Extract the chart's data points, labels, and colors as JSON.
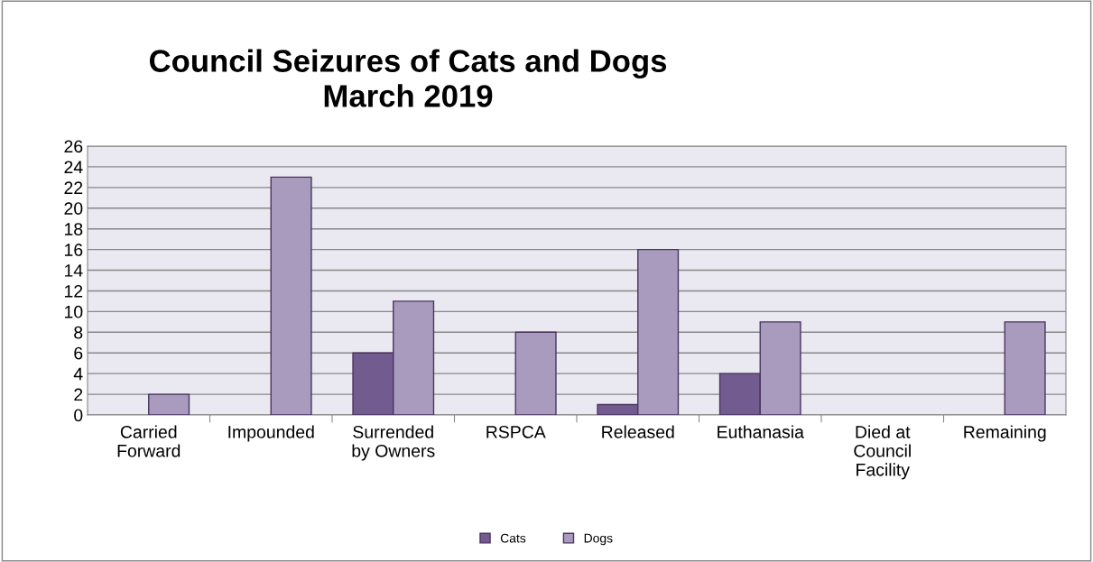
{
  "chart_data": {
    "type": "bar",
    "title": "Council Seizures of Cats and Dogs\nMarch 2019",
    "categories": [
      "Carried\nForward",
      "Impounded",
      "Surrended\nby Owners",
      "RSPCA",
      "Released",
      "Euthanasia",
      "Died at\nCouncil\nFacility",
      "Remaining"
    ],
    "series": [
      {
        "name": "Cats",
        "color": "#725b8f",
        "values": [
          0,
          0,
          6,
          0,
          1,
          4,
          0,
          0
        ]
      },
      {
        "name": "Dogs",
        "color": "#a99bbd",
        "values": [
          2,
          23,
          11,
          8,
          16,
          9,
          0,
          9
        ]
      }
    ],
    "ylim": [
      0,
      26
    ],
    "yticks": [
      0,
      2,
      4,
      6,
      8,
      10,
      12,
      14,
      16,
      18,
      20,
      22,
      24,
      26
    ],
    "grid": "y",
    "legend": "bottom"
  }
}
